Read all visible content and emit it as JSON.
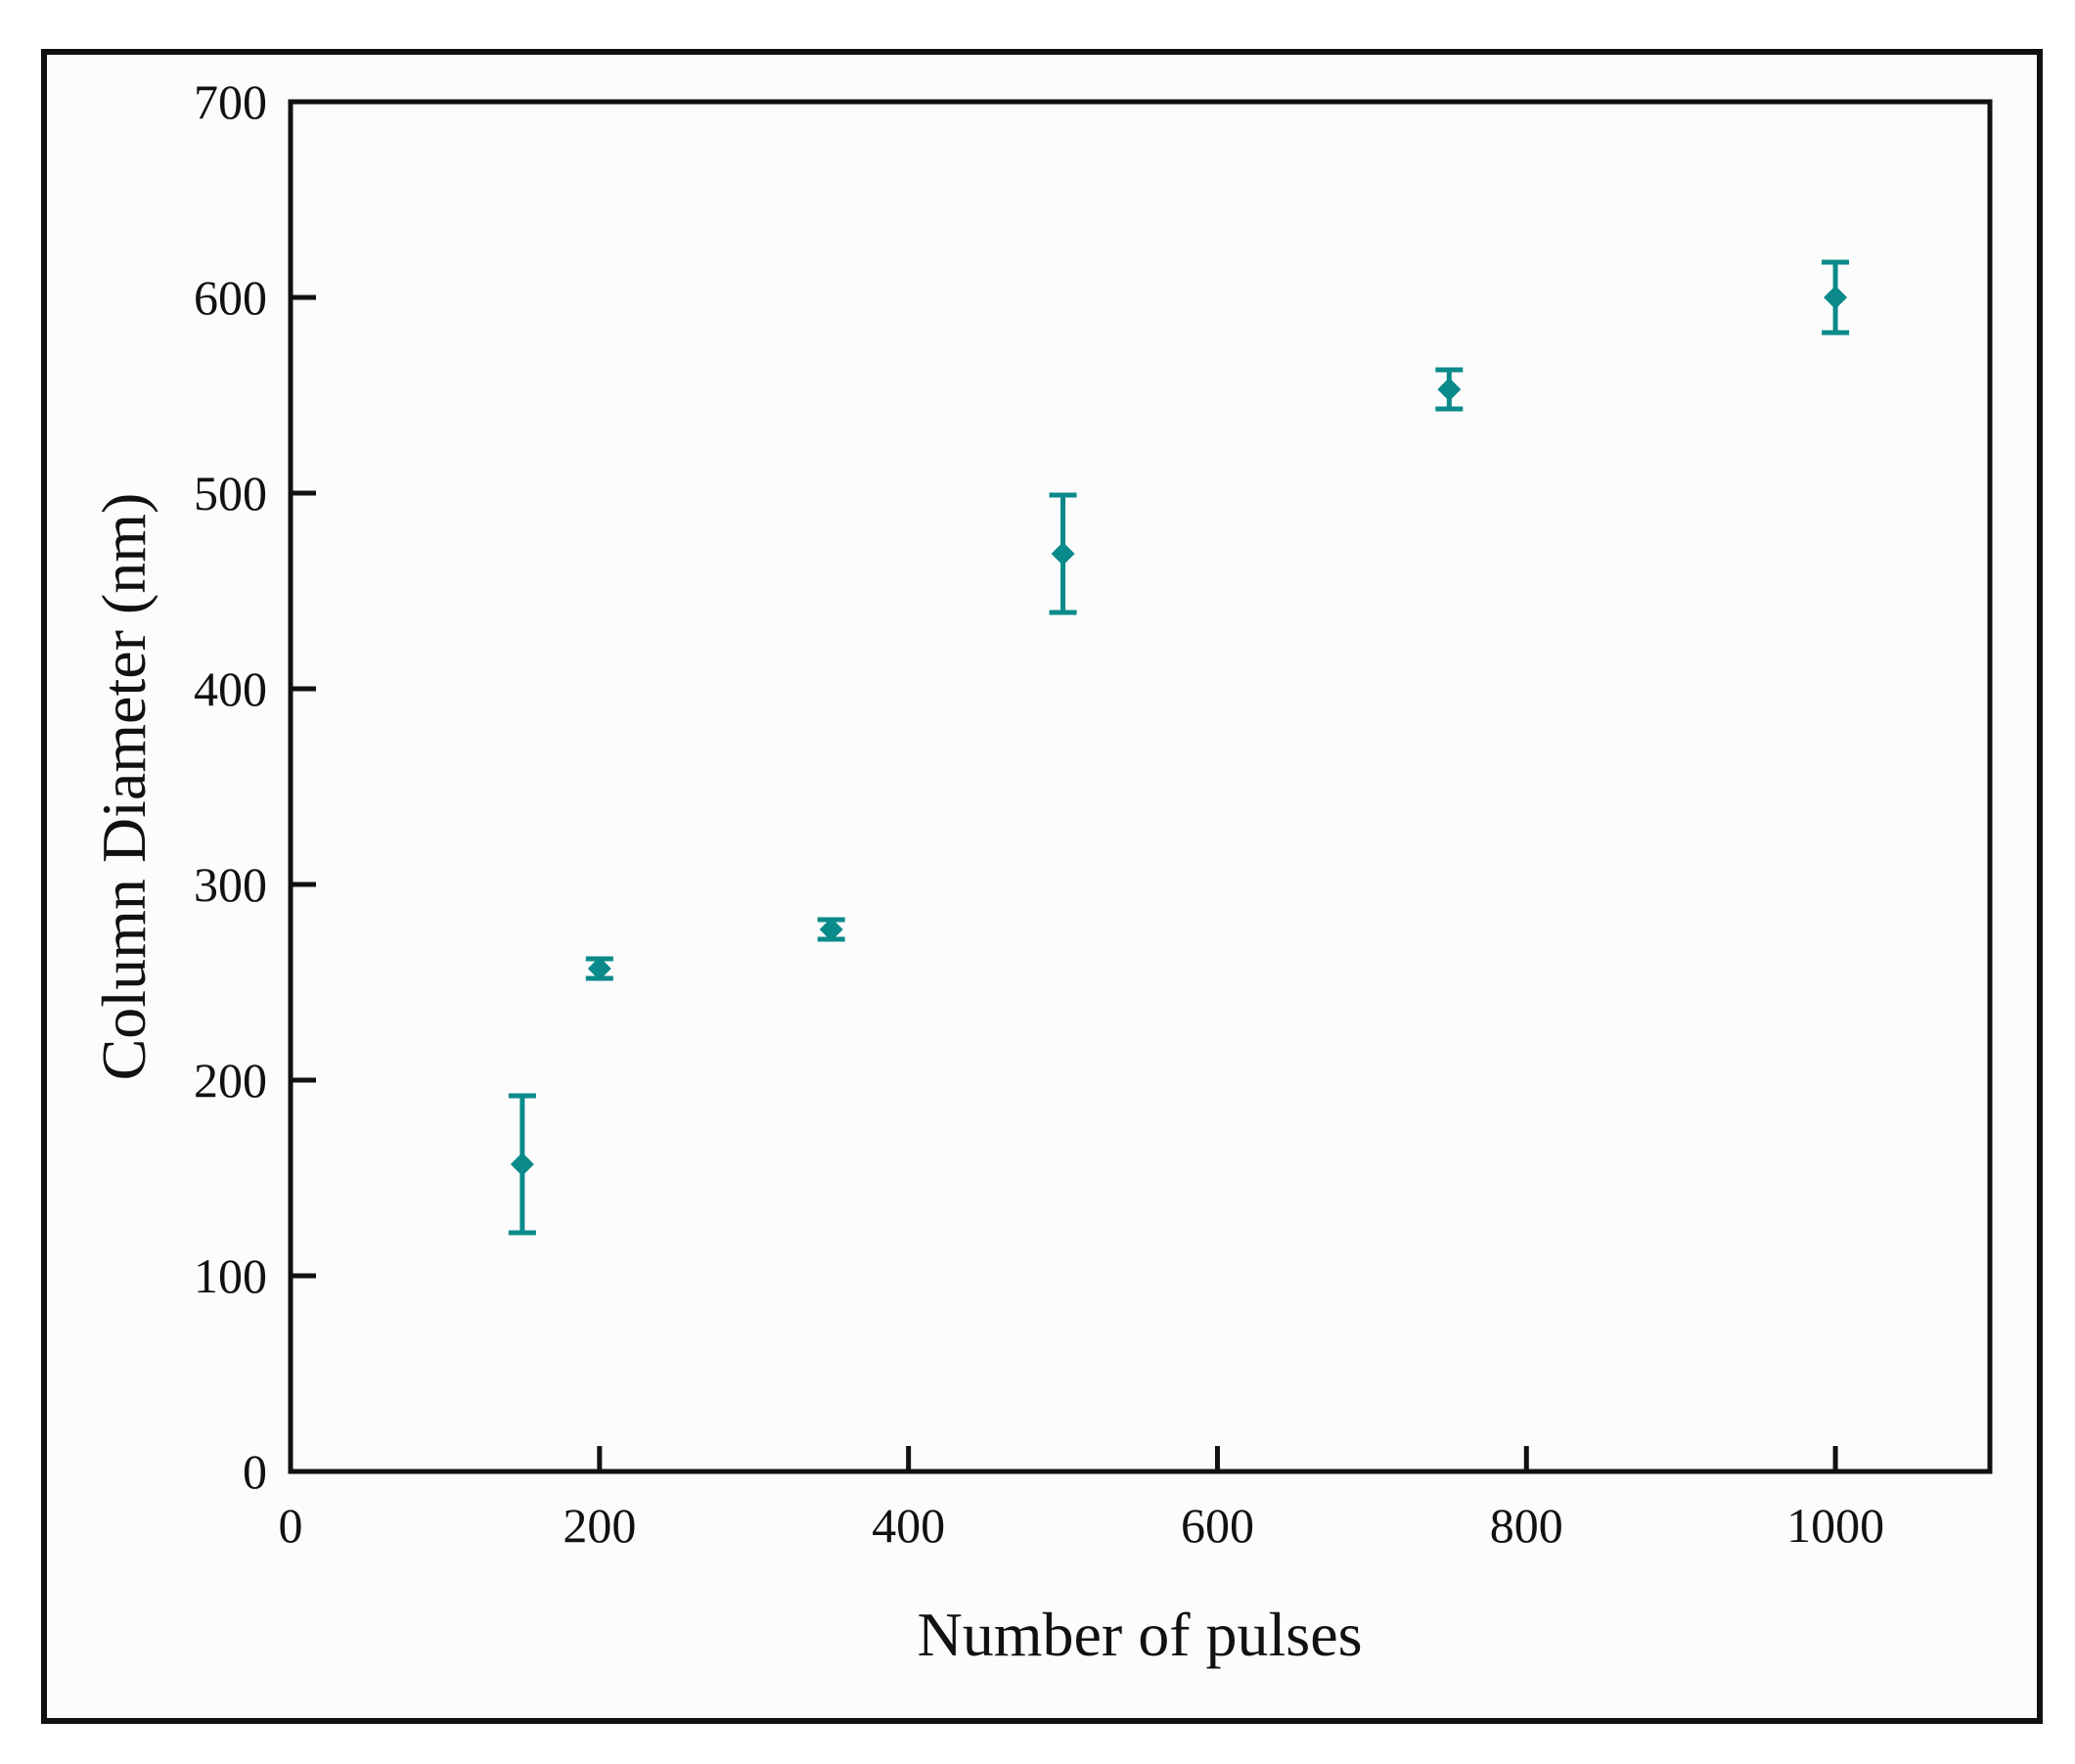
{
  "chart_data": {
    "type": "scatter",
    "title": "",
    "xlabel": "Number of pulses",
    "ylabel": "Column Diameter (nm)",
    "xlim": [
      0,
      1100
    ],
    "ylim": [
      0,
      700
    ],
    "x_ticks": [
      0,
      200,
      400,
      600,
      800,
      1000
    ],
    "y_ticks": [
      0,
      100,
      200,
      300,
      400,
      500,
      600,
      700
    ],
    "grid": false,
    "legend": "none",
    "marker": "diamond",
    "error_bars": true,
    "color": "#0a8a8a",
    "series": [
      {
        "x": [
          150,
          200,
          350,
          500,
          750,
          1000
        ],
        "y": [
          157,
          257,
          277,
          469,
          553,
          600
        ],
        "error": [
          35,
          5,
          5,
          30,
          10,
          18
        ]
      }
    ]
  }
}
